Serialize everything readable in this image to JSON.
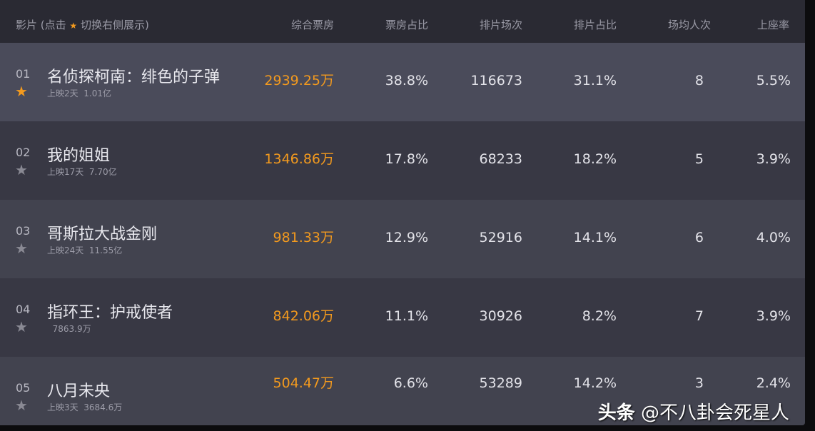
{
  "header": {
    "film": "影片 (点击",
    "film_star": "★",
    "film_tail": "切换右侧展示)",
    "gross": "综合票房",
    "gross_share": "票房占比",
    "screenings": "排片场次",
    "screening_share": "排片占比",
    "avg_attendance": "场均人次",
    "occupancy": "上座率"
  },
  "colors": {
    "accent": "#f39a1e",
    "highlight_row": "#4a4b5a"
  },
  "rows": [
    {
      "rank": "01",
      "starred": true,
      "name": "名侦探柯南：绯色的子弹",
      "sub": "上映2天  1.01亿",
      "gross": "2939.25万",
      "gross_share": "38.8%",
      "screenings": "116673",
      "screening_share": "31.1%",
      "avg": "8",
      "occupancy": "5.5%"
    },
    {
      "rank": "02",
      "starred": false,
      "name": "我的姐姐",
      "sub": "上映17天  7.70亿",
      "gross": "1346.86万",
      "gross_share": "17.8%",
      "screenings": "68233",
      "screening_share": "18.2%",
      "avg": "5",
      "occupancy": "3.9%"
    },
    {
      "rank": "03",
      "starred": false,
      "name": "哥斯拉大战金刚",
      "sub": "上映24天  11.55亿",
      "gross": "981.33万",
      "gross_share": "12.9%",
      "screenings": "52916",
      "screening_share": "14.1%",
      "avg": "6",
      "occupancy": "4.0%"
    },
    {
      "rank": "04",
      "starred": false,
      "name": "指环王：护戒使者",
      "sub": "  7863.9万",
      "gross": "842.06万",
      "gross_share": "11.1%",
      "screenings": "30926",
      "screening_share": "8.2%",
      "avg": "7",
      "occupancy": "3.9%"
    },
    {
      "rank": "05",
      "starred": false,
      "name": "八月未央",
      "sub": "上映3天  3684.6万",
      "gross": "504.47万",
      "gross_share": "6.6%",
      "screenings": "53289",
      "screening_share": "14.2%",
      "avg": "3",
      "occupancy": "2.4%"
    }
  ],
  "watermark": {
    "brand": "头条",
    "handle": "@不八卦会死星人"
  }
}
